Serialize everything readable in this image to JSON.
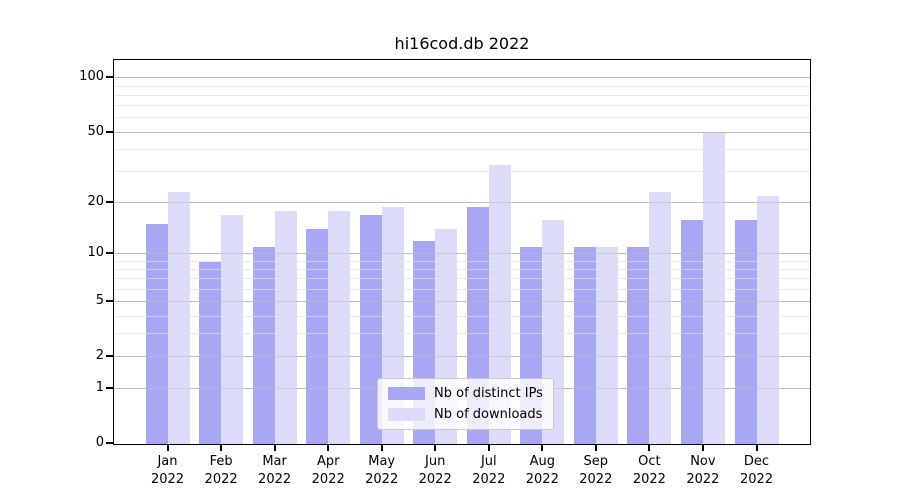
{
  "chart_data": {
    "type": "bar",
    "title": "hi16cod.db 2022",
    "categories": [
      "Jan 2022",
      "Feb 2022",
      "Mar 2022",
      "Apr 2022",
      "May 2022",
      "Jun 2022",
      "Jul 2022",
      "Aug 2022",
      "Sep 2022",
      "Oct 2022",
      "Nov 2022",
      "Dec 2022"
    ],
    "series": [
      {
        "key": "distinct-ips",
        "name": "Nb of distinct IPs",
        "color": "#a7a7f3",
        "values": [
          15,
          9,
          11,
          14,
          17,
          12,
          19,
          11,
          11,
          11,
          16,
          16
        ]
      },
      {
        "key": "downloads",
        "name": "Nb of downloads",
        "color": "#dcdcf9",
        "values": [
          23,
          17,
          18,
          18,
          19,
          14,
          33,
          16,
          11,
          23,
          50,
          22
        ]
      }
    ],
    "xlabel": "",
    "ylabel": "",
    "y_axis": {
      "scale": "log10(value+1)",
      "tick_values": [
        0,
        1,
        2,
        5,
        10,
        20,
        50,
        100
      ],
      "tick_labels": [
        "0",
        "1",
        "2",
        "5",
        "10",
        "20",
        "50",
        "100"
      ],
      "range": [
        0,
        126
      ]
    },
    "grid": {
      "on": true,
      "values": [
        1,
        2,
        3,
        4,
        5,
        6,
        7,
        8,
        9,
        10,
        20,
        30,
        40,
        50,
        60,
        70,
        80,
        90,
        100
      ],
      "major_values": [
        1,
        2,
        5,
        10,
        20,
        50,
        100
      ],
      "major_color": "#bdbdbd",
      "minor_color": "#e9e9e9"
    },
    "legend": {
      "position": "bottom-center"
    }
  }
}
